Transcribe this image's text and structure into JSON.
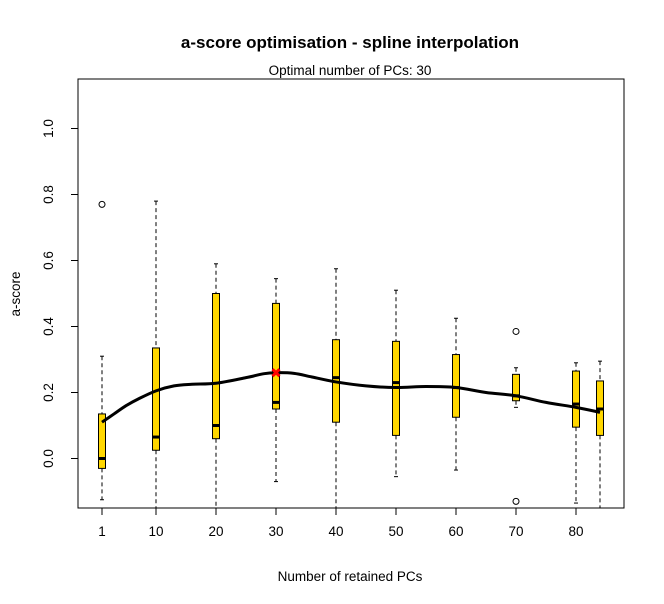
{
  "chart_data": {
    "type": "boxplot",
    "title": "a-score optimisation - spline interpolation",
    "subtitle": "Optimal number of PCs: 30",
    "xlabel": "Number of retained PCs",
    "ylabel": "a-score",
    "xlim": [
      -3,
      88
    ],
    "ylim": [
      -0.15,
      1.15
    ],
    "xticks": [
      1,
      10,
      20,
      30,
      40,
      50,
      60,
      70,
      80
    ],
    "yticks": [
      0.0,
      0.2,
      0.4,
      0.6,
      0.8,
      1.0
    ],
    "ytick_labels": [
      "0.0",
      "0.2",
      "0.4",
      "0.6",
      "0.8",
      "1.0"
    ],
    "grid": false,
    "box_color": "#FFD700",
    "optimum_color": "#FF0000",
    "optimum": {
      "x": 30,
      "y": 0.26
    },
    "boxes": [
      {
        "x": 1,
        "whisker_low": -0.125,
        "q1": -0.03,
        "median": 0.0,
        "q3": 0.135,
        "whisker_high": 0.31,
        "outliers": [
          0.77
        ]
      },
      {
        "x": 10,
        "whisker_low": -0.15,
        "q1": 0.025,
        "median": 0.065,
        "q3": 0.335,
        "whisker_high": 0.78,
        "outliers": []
      },
      {
        "x": 20,
        "whisker_low": -0.15,
        "q1": 0.06,
        "median": 0.1,
        "q3": 0.5,
        "whisker_high": 0.59,
        "outliers": []
      },
      {
        "x": 30,
        "whisker_low": -0.07,
        "q1": 0.15,
        "median": 0.17,
        "q3": 0.47,
        "whisker_high": 0.545,
        "outliers": []
      },
      {
        "x": 40,
        "whisker_low": -0.15,
        "q1": 0.11,
        "median": 0.245,
        "q3": 0.36,
        "whisker_high": 0.575,
        "outliers": []
      },
      {
        "x": 50,
        "whisker_low": -0.055,
        "q1": 0.07,
        "median": 0.23,
        "q3": 0.355,
        "whisker_high": 0.51,
        "outliers": []
      },
      {
        "x": 60,
        "whisker_low": -0.035,
        "q1": 0.125,
        "median": 0.215,
        "q3": 0.315,
        "whisker_high": 0.425,
        "outliers": []
      },
      {
        "x": 70,
        "whisker_low": 0.155,
        "q1": 0.175,
        "median": 0.19,
        "q3": 0.255,
        "whisker_high": 0.275,
        "outliers": [
          0.385,
          -0.13
        ]
      },
      {
        "x": 80,
        "whisker_low": -0.135,
        "q1": 0.095,
        "median": 0.165,
        "q3": 0.265,
        "whisker_high": 0.29,
        "outliers": []
      },
      {
        "x": 84,
        "whisker_low": -0.15,
        "q1": 0.07,
        "median": 0.15,
        "q3": 0.235,
        "whisker_high": 0.295,
        "outliers": []
      }
    ],
    "spline": {
      "x": [
        1,
        3,
        5,
        7,
        10,
        13,
        16,
        20,
        25,
        28,
        30,
        33,
        36,
        40,
        45,
        50,
        55,
        60,
        65,
        70,
        75,
        80,
        84
      ],
      "y": [
        0.11,
        0.135,
        0.16,
        0.18,
        0.205,
        0.22,
        0.225,
        0.228,
        0.245,
        0.257,
        0.26,
        0.258,
        0.247,
        0.232,
        0.22,
        0.215,
        0.218,
        0.215,
        0.2,
        0.19,
        0.17,
        0.155,
        0.14
      ]
    }
  }
}
